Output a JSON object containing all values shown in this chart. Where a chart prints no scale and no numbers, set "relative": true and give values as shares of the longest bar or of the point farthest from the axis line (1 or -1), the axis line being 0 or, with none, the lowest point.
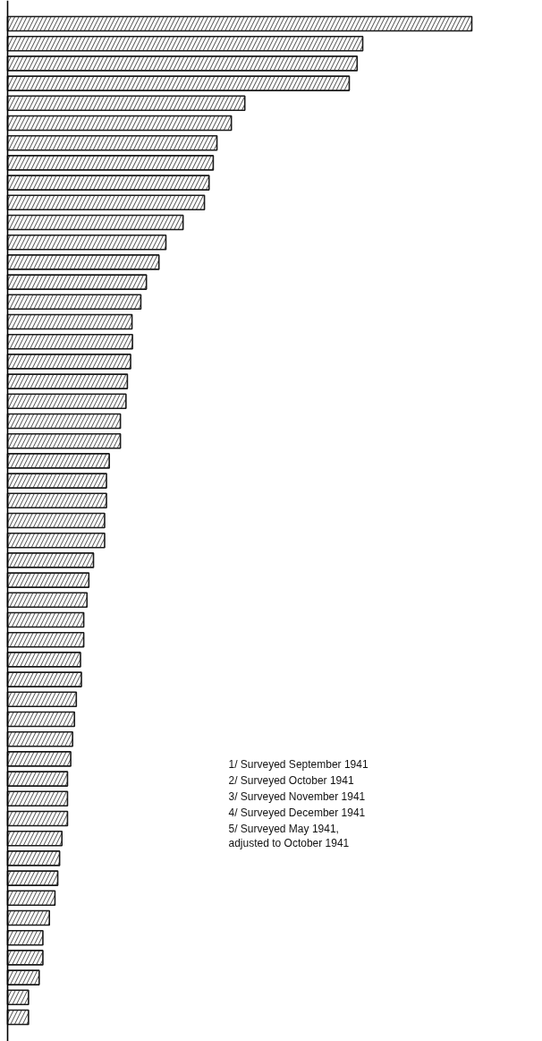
{
  "chart_data": {
    "type": "bar",
    "orientation": "horizontal",
    "relative": true,
    "color": "#1a1a1a",
    "categories": [
      null,
      null,
      null,
      null,
      null,
      null,
      null,
      null,
      null,
      null,
      null,
      null,
      null,
      null,
      null,
      null,
      null,
      null,
      null,
      null,
      null,
      null,
      null,
      null,
      null,
      null,
      null,
      null,
      null,
      null,
      null,
      null,
      null,
      null,
      null,
      null,
      null,
      null,
      null,
      null,
      null,
      null,
      null,
      null,
      null,
      null,
      null,
      null,
      null,
      null,
      null
    ],
    "values": [
      1,
      0.765,
      0.753,
      0.736,
      0.511,
      0.482,
      0.451,
      0.443,
      0.434,
      0.424,
      0.378,
      0.341,
      0.326,
      0.299,
      0.287,
      0.268,
      0.269,
      0.265,
      0.258,
      0.255,
      0.243,
      0.243,
      0.219,
      0.213,
      0.213,
      0.209,
      0.209,
      0.185,
      0.175,
      0.171,
      0.164,
      0.164,
      0.157,
      0.159,
      0.148,
      0.144,
      0.14,
      0.136,
      0.129,
      0.129,
      0.129,
      0.117,
      0.112,
      0.108,
      0.102,
      0.09,
      0.076,
      0.076,
      0.068,
      0.045,
      0.045
    ],
    "annotations": [
      "1/ Surveyed September 1941",
      "2/ Surveyed October 1941",
      "3/ Surveyed November 1941",
      "4/ Surveyed December 1941",
      "5/ Surveyed May 1941,\nadjusted to October 1941"
    ]
  }
}
